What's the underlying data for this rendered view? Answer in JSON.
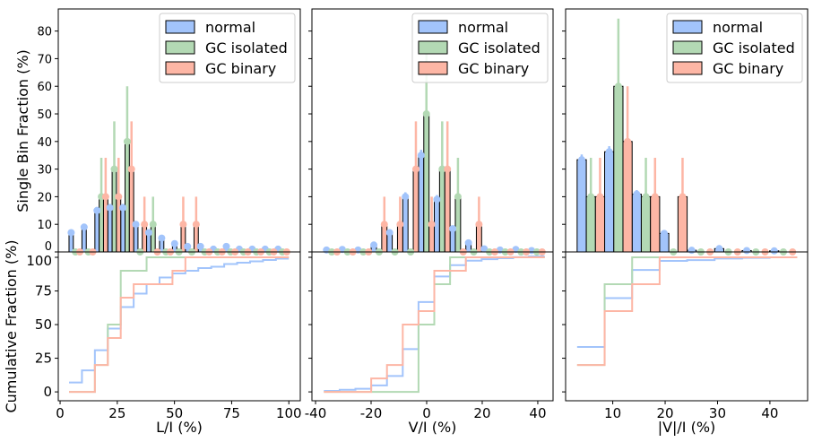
{
  "chart_data": [
    {
      "type": "bar",
      "xlabel": "L/I (%)",
      "ylabel": "Single Bin Fraction (%)",
      "cumulative_ylabel": "Cumulative Fraction (%)",
      "bin_range": [
        3.9,
        100
      ],
      "xlim": [
        -0.8,
        105
      ],
      "xticks": [
        0,
        25,
        50,
        75,
        100
      ],
      "ylim": [
        0,
        88
      ],
      "yticks": [
        0,
        10,
        20,
        30,
        40,
        50,
        60,
        70,
        80
      ],
      "cumulative_ylim": [
        -6.6,
        104
      ],
      "cumulative_yticks": [
        0,
        25,
        50,
        75,
        100
      ],
      "legend": "top-right",
      "series": [
        {
          "name": "normal",
          "color": "#a2c4fb",
          "values": [
            7,
            9,
            15,
            16,
            16,
            10,
            7,
            5,
            3,
            2,
            2,
            1,
            2,
            1,
            1,
            1,
            1
          ],
          "yerr": [
            1,
            1,
            1.3,
            1.4,
            1.4,
            1.1,
            1,
            0.8,
            0.6,
            0.5,
            0.5,
            0.4,
            0.5,
            0.4,
            0.4,
            0.4,
            0.4
          ]
        },
        {
          "name": "GC isolated",
          "color": "#b3d9b4",
          "values": [
            0,
            0,
            20,
            30,
            40,
            0,
            10,
            0,
            0,
            0,
            0,
            0,
            0,
            0,
            0,
            0,
            0
          ],
          "yerr": [
            0,
            0,
            14.1,
            17.3,
            20,
            0,
            10,
            0,
            0,
            0,
            0,
            0,
            0,
            0,
            0,
            0,
            0
          ]
        },
        {
          "name": "GC binary",
          "color": "#fdb6a5",
          "values": [
            0,
            0,
            20,
            20,
            30,
            10,
            0,
            0,
            10,
            10,
            0,
            0,
            0,
            0,
            0,
            0,
            0
          ],
          "yerr": [
            0,
            0,
            14.1,
            14.1,
            17.3,
            10,
            0,
            0,
            10,
            10,
            0,
            0,
            0,
            0,
            0,
            0,
            0
          ]
        }
      ]
    },
    {
      "type": "bar",
      "xlabel": "V/I (%)",
      "ylabel": "",
      "bin_range": [
        -37,
        42.5
      ],
      "xlim": [
        -41.3,
        45.5
      ],
      "xticks": [
        -40,
        -20,
        0,
        20,
        40
      ],
      "ylim": [
        0,
        88
      ],
      "yticks": [
        0,
        10,
        20,
        30,
        40,
        50,
        60,
        70,
        80
      ],
      "cumulative_ylim": [
        -6.6,
        104
      ],
      "cumulative_yticks": [
        0,
        25,
        50,
        75,
        100
      ],
      "legend": "top-right",
      "series": [
        {
          "name": "normal",
          "color": "#a2c4fb",
          "values": [
            0.7,
            0.9,
            0.7,
            2.5,
            7,
            20,
            35,
            19,
            8.4,
            3.3,
            1.1,
            0.7,
            0.9,
            0.5
          ],
          "yerr": [
            0.3,
            0.3,
            0.3,
            0.6,
            1,
            1.6,
            2,
            1.6,
            1,
            0.7,
            0.4,
            0.3,
            0.3,
            0.3
          ]
        },
        {
          "name": "GC isolated",
          "color": "#b3d9b4",
          "values": [
            0,
            0,
            0,
            0,
            0,
            0,
            50,
            30,
            20,
            0,
            0,
            0,
            0,
            0
          ],
          "yerr": [
            0,
            0,
            0,
            0,
            0,
            0,
            22.4,
            17.3,
            14.1,
            0,
            0,
            0,
            0,
            0
          ]
        },
        {
          "name": "GC binary",
          "color": "#fdb6a5",
          "values": [
            0,
            0,
            0,
            10,
            10,
            30,
            10,
            30,
            0,
            10,
            0,
            0,
            0,
            0
          ],
          "yerr": [
            0,
            0,
            0,
            10,
            10,
            17.3,
            10,
            17.3,
            0,
            10,
            0,
            0,
            0,
            0
          ]
        }
      ]
    },
    {
      "type": "bar",
      "xlabel": "|V|/I (%)",
      "ylabel": "",
      "bin_range": [
        3.2,
        45.2
      ],
      "xlim": [
        1.0,
        47.2
      ],
      "xticks": [
        10,
        20,
        30,
        40
      ],
      "ylim": [
        0,
        88
      ],
      "yticks": [
        0,
        10,
        20,
        30,
        40,
        50,
        60,
        70,
        80
      ],
      "cumulative_ylim": [
        -6.6,
        104
      ],
      "cumulative_yticks": [
        0,
        25,
        50,
        75,
        100
      ],
      "legend": "top-right",
      "series": [
        {
          "name": "normal",
          "color": "#a2c4fb",
          "values": [
            33.4,
            36.3,
            20.9,
            6.7,
            0.6,
            1.2,
            0.5,
            0.4
          ],
          "yerr": [
            1.9,
            2,
            1.5,
            0.8,
            0.3,
            0.4,
            0.3,
            0.3
          ]
        },
        {
          "name": "GC isolated",
          "color": "#b3d9b4",
          "values": [
            20,
            60,
            20,
            0,
            0,
            0,
            0,
            0
          ],
          "yerr": [
            14.1,
            24.5,
            14.1,
            0,
            0,
            0,
            0,
            0
          ]
        },
        {
          "name": "GC binary",
          "color": "#fdb6a5",
          "values": [
            20,
            40,
            20,
            20,
            0,
            0,
            0,
            0
          ],
          "yerr": [
            14.1,
            20,
            14.1,
            14.1,
            0,
            0,
            0,
            0
          ]
        }
      ]
    }
  ]
}
